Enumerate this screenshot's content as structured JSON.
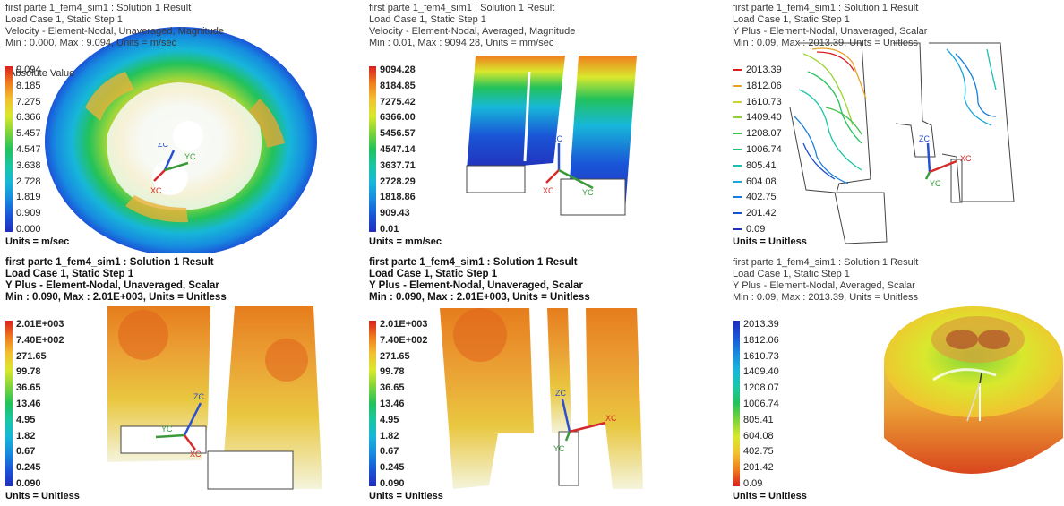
{
  "panels": [
    {
      "lines": [
        "first parte 1_fem4_sim1 : Solution 1 Result",
        "Load Case 1, Static Step 1",
        "Velocity - Element-Nodal, Unaveraged, Magnitude",
        "Min : 0.000, Max : 9.094, Units = m/sec"
      ],
      "legend_title": "Absolute Value",
      "ticks": [
        "9.094",
        "8.185",
        "7.275",
        "6.366",
        "5.457",
        "4.547",
        "3.638",
        "2.728",
        "1.819",
        "0.909",
        "0.000"
      ],
      "units": "Units = m/sec",
      "palette": [
        "#d91f1f",
        "#f07c1e",
        "#f2c230",
        "#d9e82d",
        "#7ed43a",
        "#22c25a",
        "#19c7a5",
        "#17b7d9",
        "#178be0",
        "#1a55d8",
        "#1f2dbd"
      ]
    },
    {
      "lines": [
        "first parte 1_fem4_sim1 : Solution 1 Result",
        "Load Case 1, Static Step 1",
        "Velocity - Element-Nodal, Averaged, Magnitude",
        "Min : 0.01, Max : 9094.28, Units = mm/sec"
      ],
      "ticks": [
        "9094.28",
        "8184.85",
        "7275.42",
        "6366.00",
        "5456.57",
        "4547.14",
        "3637.71",
        "2728.29",
        "1818.86",
        "909.43",
        "0.01"
      ],
      "units": "Units = mm/sec",
      "palette": [
        "#d91f1f",
        "#f07c1e",
        "#f2c230",
        "#d9e82d",
        "#7ed43a",
        "#22c25a",
        "#19c7a5",
        "#17b7d9",
        "#178be0",
        "#1a55d8",
        "#1f2dbd"
      ]
    },
    {
      "lines": [
        "first parte 1_fem4_sim1 : Solution 1 Result",
        "Load Case 1, Static Step 1",
        "Y Plus - Element-Nodal, Unaveraged, Scalar",
        "Min : 0.09, Max : 2013.39, Units = Unitless"
      ],
      "ticks": [
        "2013.39",
        "1812.06",
        "1610.73",
        "1409.40",
        "1208.07",
        "1006.74",
        "805.41",
        "604.08",
        "402.75",
        "201.42",
        "0.09"
      ],
      "units": "Units = Unitless",
      "palette": [
        "#d91f1f",
        "#e8a02a",
        "#c9d22f",
        "#8fcf38",
        "#3ec24c",
        "#1fbf7a",
        "#1cbfae",
        "#1aa6d6",
        "#1a7fdc",
        "#1a4fd2",
        "#2230b8"
      ]
    },
    {
      "lines": [
        "first parte 1_fem4_sim1 : Solution 1 Result",
        "Load Case 1, Static Step 1",
        "Y Plus - Element-Nodal, Unaveraged, Scalar",
        "Min : 0.090, Max : 2.01E+003, Units = Unitless"
      ],
      "ticks": [
        "2.01E+003",
        "7.40E+002",
        "271.65",
        "99.78",
        "36.65",
        "13.46",
        "4.95",
        "1.82",
        "0.67",
        "0.245",
        "0.090"
      ],
      "units": "Units = Unitless",
      "palette": [
        "#d91f1f",
        "#f07c1e",
        "#f2c230",
        "#d9e82d",
        "#7ed43a",
        "#22c25a",
        "#19c7a5",
        "#17b7d9",
        "#178be0",
        "#1a55d8",
        "#1f2dbd"
      ]
    },
    {
      "lines": [
        "first parte 1_fem4_sim1 : Solution 1 Result",
        "Load Case 1, Static Step 1",
        "Y Plus - Element-Nodal, Unaveraged, Scalar",
        "Min : 0.090, Max : 2.01E+003, Units = Unitless"
      ],
      "ticks": [
        "2.01E+003",
        "7.40E+002",
        "271.65",
        "99.78",
        "36.65",
        "13.46",
        "4.95",
        "1.82",
        "0.67",
        "0.245",
        "0.090"
      ],
      "units": "Units = Unitless",
      "palette": [
        "#d91f1f",
        "#f07c1e",
        "#f2c230",
        "#d9e82d",
        "#7ed43a",
        "#22c25a",
        "#19c7a5",
        "#17b7d9",
        "#178be0",
        "#1a55d8",
        "#1f2dbd"
      ]
    },
    {
      "lines": [
        "first parte 1_fem4_sim1 : Solution 1 Result",
        "Load Case 1, Static Step 1",
        "Y Plus - Element-Nodal, Averaged, Scalar",
        "Min : 0.09, Max : 2013.39, Units = Unitless"
      ],
      "ticks": [
        "2013.39",
        "1812.06",
        "1610.73",
        "1409.40",
        "1208.07",
        "1006.74",
        "805.41",
        "604.08",
        "402.75",
        "201.42",
        "0.09"
      ],
      "units": "Units = Unitless",
      "palette": [
        "#1f2dbd",
        "#1a55d8",
        "#178be0",
        "#17b7d9",
        "#19c7a5",
        "#22c25a",
        "#7ed43a",
        "#d9e82d",
        "#f2c230",
        "#f07c1e",
        "#d91f1f"
      ]
    }
  ],
  "triad": {
    "xc": "XC",
    "yc": "YC",
    "zc": "ZC"
  }
}
